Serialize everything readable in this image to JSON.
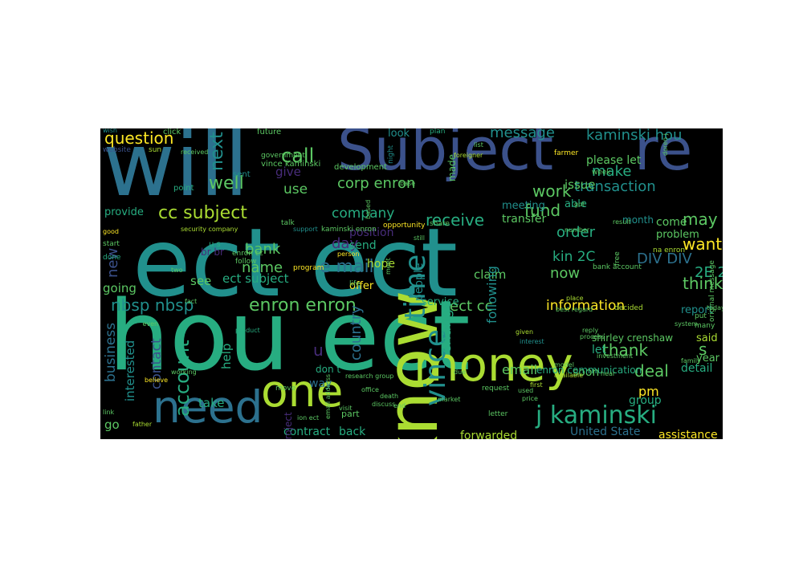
{
  "palette": [
    "#440154",
    "#472c7a",
    "#3b518b",
    "#2c718e",
    "#21908d",
    "#27ad81",
    "#5cc863",
    "#aadc32",
    "#fde725"
  ],
  "words": [
    {
      "text": "ect ect",
      "color": 4
    },
    {
      "text": "hou ect",
      "color": 5
    },
    {
      "text": "will",
      "color": 3
    },
    {
      "text": "Subject",
      "color": 2
    },
    {
      "text": "re",
      "color": 2
    },
    {
      "text": "know",
      "color": 7
    },
    {
      "text": "money",
      "color": 7
    },
    {
      "text": "one",
      "color": 7
    },
    {
      "text": "need",
      "color": 3
    },
    {
      "text": "j kaminski",
      "color": 5
    },
    {
      "text": "time",
      "color": 4
    },
    {
      "text": "vince",
      "color": 4
    },
    {
      "text": "e mail",
      "color": 3
    },
    {
      "text": "cc subject",
      "color": 7
    },
    {
      "text": "enron enron",
      "color": 6
    },
    {
      "text": "question",
      "color": 8
    },
    {
      "text": "nbsp nbsp",
      "color": 4
    },
    {
      "text": "account",
      "color": 5
    },
    {
      "text": "business",
      "color": 3
    },
    {
      "text": "contact",
      "color": 2
    },
    {
      "text": "call",
      "color": 6
    },
    {
      "text": "well",
      "color": 6
    },
    {
      "text": "use",
      "color": 6
    },
    {
      "text": "corp enron",
      "color": 6
    },
    {
      "text": "company",
      "color": 5
    },
    {
      "text": "receive",
      "color": 5
    },
    {
      "text": "work",
      "color": 6
    },
    {
      "text": "fund",
      "color": 6
    },
    {
      "text": "order",
      "color": 5
    },
    {
      "text": "transaction",
      "color": 4
    },
    {
      "text": "make",
      "color": 5
    },
    {
      "text": "please let",
      "color": 6
    },
    {
      "text": "kaminski hou",
      "color": 4
    },
    {
      "text": "message",
      "color": 4
    },
    {
      "text": "next",
      "color": 4
    },
    {
      "text": "new",
      "color": 2
    },
    {
      "text": "bank",
      "color": 6
    },
    {
      "text": "name",
      "color": 6
    },
    {
      "text": "day",
      "color": 1
    },
    {
      "text": "want",
      "color": 8
    },
    {
      "text": "may",
      "color": 6
    },
    {
      "text": "DIV DIV",
      "color": 3
    },
    {
      "text": "2E 2E",
      "color": 5
    },
    {
      "text": "kin 2C",
      "color": 5
    },
    {
      "text": "now",
      "color": 6
    },
    {
      "text": "think",
      "color": 6
    },
    {
      "text": "ect cc",
      "color": 6
    },
    {
      "text": "information",
      "color": 8
    },
    {
      "text": "country",
      "color": 3
    },
    {
      "text": "change",
      "color": 5
    },
    {
      "text": "thank",
      "color": 6
    },
    {
      "text": "deal",
      "color": 6
    },
    {
      "text": "email",
      "color": 6
    },
    {
      "text": "pm",
      "color": 8
    },
    {
      "text": "s",
      "color": 6
    },
    {
      "text": "u",
      "color": 1
    },
    {
      "text": "help",
      "color": 5
    },
    {
      "text": "see",
      "color": 6
    },
    {
      "text": "going",
      "color": 6
    },
    {
      "text": "ect subject",
      "color": 5
    },
    {
      "text": "interested",
      "color": 4
    },
    {
      "text": "take",
      "color": 5
    },
    {
      "text": "go",
      "color": 6
    },
    {
      "text": "contract",
      "color": 5
    },
    {
      "text": "back",
      "color": 5
    },
    {
      "text": "forwarded",
      "color": 7
    },
    {
      "text": "United State",
      "color": 3
    },
    {
      "text": "assistance",
      "color": 8
    },
    {
      "text": "give",
      "color": 1
    },
    {
      "text": "provide",
      "color": 5
    },
    {
      "text": "position",
      "color": 1
    },
    {
      "text": "send",
      "color": 5
    },
    {
      "text": "hope",
      "color": 7
    },
    {
      "text": "offer",
      "color": 8
    },
    {
      "text": "claim",
      "color": 6
    },
    {
      "text": "service",
      "color": 5
    },
    {
      "text": "people",
      "color": 4
    },
    {
      "text": "following",
      "color": 4
    },
    {
      "text": "transfer",
      "color": 6
    },
    {
      "text": "come",
      "color": 6
    },
    {
      "text": "problem",
      "color": 6
    },
    {
      "text": "report",
      "color": 4
    },
    {
      "text": "detail",
      "color": 5
    },
    {
      "text": "year",
      "color": 6
    },
    {
      "text": "said",
      "color": 7
    },
    {
      "text": "group",
      "color": 5
    },
    {
      "text": "soon",
      "color": 6
    },
    {
      "text": "let",
      "color": 5
    },
    {
      "text": "shirley crenshaw",
      "color": 6
    },
    {
      "text": "month",
      "color": 4
    },
    {
      "text": "look",
      "color": 4
    },
    {
      "text": "made",
      "color": 6
    },
    {
      "text": "issue",
      "color": 6
    },
    {
      "text": "able",
      "color": 5
    },
    {
      "text": "meeting",
      "color": 4
    },
    {
      "text": "way",
      "color": 3
    },
    {
      "text": "don t",
      "color": 5
    },
    {
      "text": "br br",
      "color": 1
    },
    {
      "text": "project",
      "color": 1
    },
    {
      "text": "part",
      "color": 6
    },
    {
      "text": "enron communication",
      "color": 5
    },
    {
      "text": "vince kaminski",
      "color": 6
    },
    {
      "text": "development",
      "color": 6
    },
    {
      "text": "future",
      "color": 6
    },
    {
      "text": "sent",
      "color": 4
    },
    {
      "text": "point",
      "color": 5
    },
    {
      "text": "wish",
      "color": 4
    },
    {
      "text": "click",
      "color": 6
    },
    {
      "text": "website",
      "color": 2
    },
    {
      "text": "sun",
      "color": 7
    },
    {
      "text": "received",
      "color": 6
    },
    {
      "text": "government",
      "color": 6
    },
    {
      "text": "farmer",
      "color": 8
    },
    {
      "text": "foreigner",
      "color": 7
    },
    {
      "text": "plan",
      "color": 5
    },
    {
      "text": "night",
      "color": 4
    },
    {
      "text": "doren j",
      "color": 6
    },
    {
      "text": "week",
      "color": 6
    },
    {
      "text": "support",
      "color": 4
    },
    {
      "text": "kaminski enron",
      "color": 6
    },
    {
      "text": "talk",
      "color": 6
    },
    {
      "text": "enron cc",
      "color": 6
    },
    {
      "text": "follow",
      "color": 6
    },
    {
      "text": "u s",
      "color": 5
    },
    {
      "text": "security company",
      "color": 7
    },
    {
      "text": "good",
      "color": 8
    },
    {
      "text": "start",
      "color": 6
    },
    {
      "text": "done",
      "color": 5
    },
    {
      "text": "two",
      "color": 6
    },
    {
      "text": "fact",
      "color": 6
    },
    {
      "text": "person",
      "color": 8
    },
    {
      "text": "program",
      "color": 8
    },
    {
      "text": "life",
      "color": 6
    },
    {
      "text": "share",
      "color": 6
    },
    {
      "text": "opportunity",
      "color": 8
    },
    {
      "text": "number",
      "color": 6
    },
    {
      "text": "result",
      "color": 6
    },
    {
      "text": "na enron",
      "color": 7
    },
    {
      "text": "bank account",
      "color": 6
    },
    {
      "text": "free",
      "color": 6
    },
    {
      "text": "place",
      "color": 7
    },
    {
      "text": "best regard",
      "color": 6
    },
    {
      "text": "decided",
      "color": 7
    },
    {
      "text": "original message",
      "color": 6
    },
    {
      "text": "product",
      "color": 5
    },
    {
      "text": "given",
      "color": 7
    },
    {
      "text": "interest",
      "color": 4
    },
    {
      "text": "process",
      "color": 6
    },
    {
      "text": "investment",
      "color": 6
    },
    {
      "text": "many",
      "color": 6
    },
    {
      "text": "system",
      "color": 6
    },
    {
      "text": "family",
      "color": 6
    },
    {
      "text": "hear",
      "color": 6
    },
    {
      "text": "model",
      "color": 6
    },
    {
      "text": "available",
      "color": 7
    },
    {
      "text": "first",
      "color": 7
    },
    {
      "text": "used",
      "color": 6
    },
    {
      "text": "request",
      "color": 6
    },
    {
      "text": "market",
      "color": 6
    },
    {
      "text": "end",
      "color": 6
    },
    {
      "text": "price",
      "color": 6
    },
    {
      "text": "letter",
      "color": 6
    },
    {
      "text": "visit",
      "color": 6
    },
    {
      "text": "research group",
      "color": 6
    },
    {
      "text": "office",
      "color": 6
    },
    {
      "text": "death",
      "color": 6
    },
    {
      "text": "discuss",
      "color": 6
    },
    {
      "text": "move",
      "color": 6
    },
    {
      "text": "ion ect",
      "color": 6
    },
    {
      "text": "father",
      "color": 7
    },
    {
      "text": "link",
      "color": 6
    },
    {
      "text": "believe",
      "color": 8
    },
    {
      "text": "working",
      "color": 6
    },
    {
      "text": "email address",
      "color": 6
    },
    {
      "text": "due",
      "color": 6
    },
    {
      "text": "today",
      "color": 6
    },
    {
      "text": "put",
      "color": 6
    },
    {
      "text": "base",
      "color": 6
    },
    {
      "text": "based",
      "color": 6
    },
    {
      "text": "got",
      "color": 6
    },
    {
      "text": "reply",
      "color": 6
    },
    {
      "text": "meet",
      "color": 6
    },
    {
      "text": "still",
      "color": 6
    },
    {
      "text": "even",
      "color": 6
    },
    {
      "text": "list",
      "color": 6
    }
  ]
}
